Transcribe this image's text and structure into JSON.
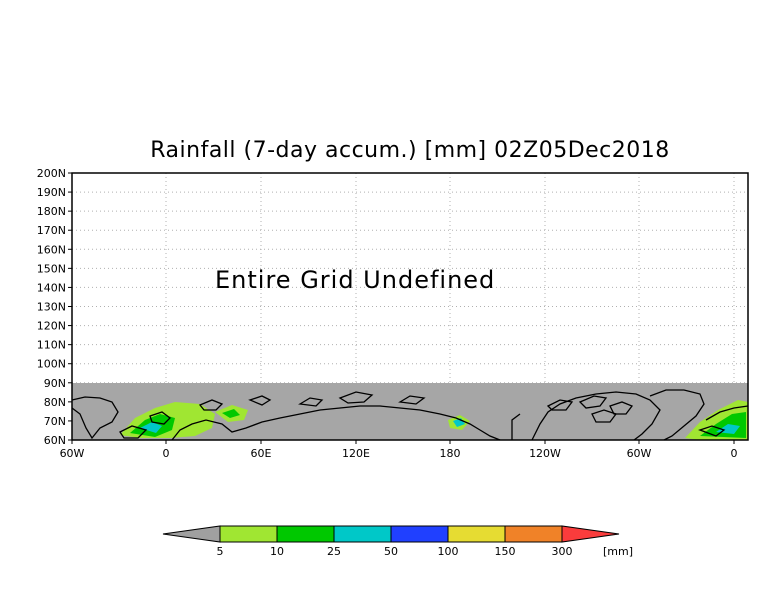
{
  "title": "Rainfall (7-day accum.) [mm] 02Z05Dec2018",
  "message": "Entire Grid Undefined",
  "y_ticks": [
    "60N",
    "70N",
    "80N",
    "90N",
    "100N",
    "110N",
    "120N",
    "130N",
    "140N",
    "150N",
    "160N",
    "170N",
    "180N",
    "190N",
    "200N"
  ],
  "x_ticks": [
    "60W",
    "0",
    "60E",
    "120E",
    "180",
    "120W",
    "60W",
    "0"
  ],
  "legend": {
    "labels": [
      "5",
      "10",
      "25",
      "50",
      "100",
      "150",
      "300"
    ],
    "unit": "[mm]",
    "colors": [
      "#a0a0a0",
      "#a0e632",
      "#00c800",
      "#00c8c8",
      "#2040ff",
      "#e6dc32",
      "#f08228",
      "#fa3c3c"
    ]
  },
  "colors": {
    "undefined_fill": "#a6a6a6",
    "coastline": "#000000",
    "grid": "#b0b0b0"
  }
}
